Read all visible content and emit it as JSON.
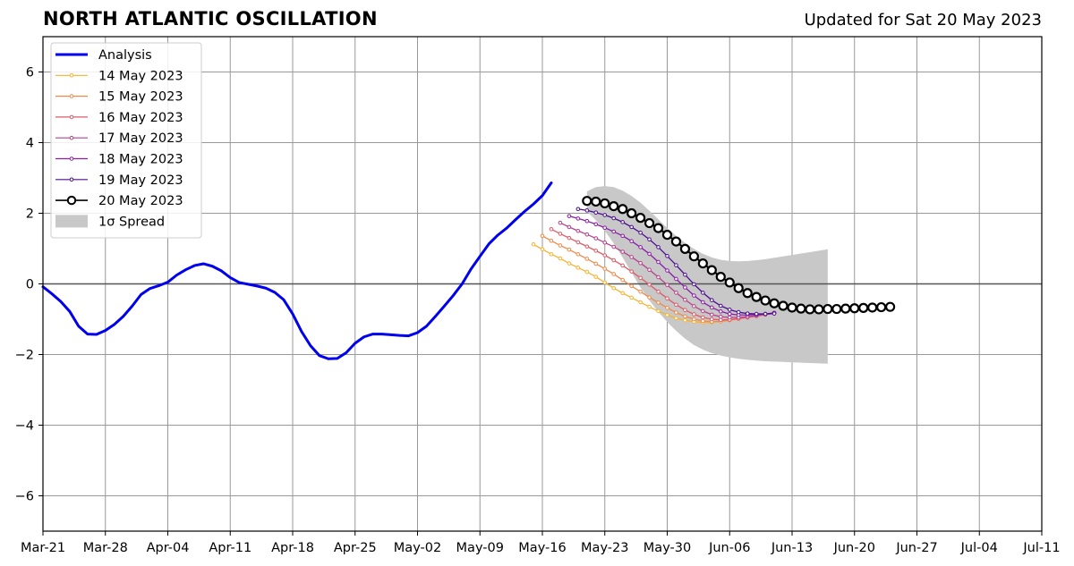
{
  "header": {
    "title": "NORTH ATLANTIC OSCILLATION",
    "updated": "Updated for Sat 20 May 2023"
  },
  "colors": {
    "analysis": "#0000ee",
    "spread": "#c8c8c8",
    "grid": "#999999",
    "zero_line": "#555555",
    "forecasts": [
      "#f5b331",
      "#ee8a4a",
      "#dc5c6a",
      "#b5418a",
      "#8a1ea6",
      "#4b0e90",
      "#000000"
    ]
  },
  "chart_data": {
    "type": "line",
    "title": "NORTH ATLANTIC OSCILLATION",
    "xlabel": "",
    "ylabel": "",
    "xlim": [
      "2023-03-21",
      "2023-07-11"
    ],
    "ylim": [
      -7,
      7
    ],
    "grid": true,
    "legend_position": "top-left",
    "x_ticks": [
      "Mar-21",
      "Mar-28",
      "Apr-04",
      "Apr-11",
      "Apr-18",
      "Apr-25",
      "May-02",
      "May-09",
      "May-16",
      "May-23",
      "May-30",
      "Jun-06",
      "Jun-13",
      "Jun-20",
      "Jun-27",
      "Jul-04",
      "Jul-11"
    ],
    "y_ticks": [
      "−6",
      "−4",
      "−2",
      "0",
      "2",
      "4",
      "6"
    ],
    "y_tick_values": [
      -6,
      -4,
      -2,
      0,
      2,
      4,
      6
    ],
    "legend": [
      "Analysis",
      "14 May 2023",
      "15 May 2023",
      "16 May 2023",
      "17 May 2023",
      "18 May 2023",
      "19 May 2023",
      "20 May 2023",
      "1σ Spread"
    ],
    "analysis": {
      "name": "Analysis",
      "x_start": "2023-03-21",
      "values": [
        -0.08,
        -0.28,
        -0.5,
        -0.78,
        -1.2,
        -1.42,
        -1.43,
        -1.32,
        -1.15,
        -0.92,
        -0.63,
        -0.3,
        -0.13,
        -0.05,
        0.05,
        0.25,
        0.4,
        0.52,
        0.57,
        0.5,
        0.37,
        0.18,
        0.04,
        -0.01,
        -0.06,
        -0.12,
        -0.24,
        -0.45,
        -0.85,
        -1.35,
        -1.75,
        -2.03,
        -2.12,
        -2.11,
        -1.95,
        -1.68,
        -1.5,
        -1.42,
        -1.42,
        -1.44,
        -1.46,
        -1.47,
        -1.38,
        -1.2,
        -0.92,
        -0.63,
        -0.33,
        0.0,
        0.42,
        0.78,
        1.13,
        1.38,
        1.58,
        1.82,
        2.05,
        2.26,
        2.5,
        2.86
      ]
    },
    "forecasts": [
      {
        "name": "14 May 2023",
        "x_start": "2023-05-15",
        "values": [
          1.12,
          0.98,
          0.84,
          0.72,
          0.58,
          0.46,
          0.34,
          0.2,
          0.04,
          -0.12,
          -0.26,
          -0.39,
          -0.52,
          -0.65,
          -0.77,
          -0.88,
          -0.97,
          -1.03,
          -1.07,
          -1.09,
          -1.09,
          -1.06,
          -1.02,
          -0.97,
          -0.93,
          -0.9,
          -0.86,
          -0.82
        ]
      },
      {
        "name": "15 May 2023",
        "x_start": "2023-05-16",
        "values": [
          1.36,
          1.22,
          1.09,
          0.97,
          0.84,
          0.71,
          0.57,
          0.43,
          0.28,
          0.11,
          -0.06,
          -0.22,
          -0.38,
          -0.53,
          -0.68,
          -0.81,
          -0.92,
          -1.0,
          -1.05,
          -1.07,
          -1.06,
          -1.03,
          -0.99,
          -0.95,
          -0.91,
          -0.87,
          -0.83
        ]
      },
      {
        "name": "16 May 2023",
        "x_start": "2023-05-17",
        "values": [
          1.55,
          1.42,
          1.3,
          1.18,
          1.06,
          0.94,
          0.81,
          0.67,
          0.52,
          0.35,
          0.17,
          -0.02,
          -0.22,
          -0.41,
          -0.59,
          -0.74,
          -0.86,
          -0.95,
          -1.0,
          -1.02,
          -1.01,
          -0.98,
          -0.95,
          -0.91,
          -0.87,
          -0.83
        ]
      },
      {
        "name": "17 May 2023",
        "x_start": "2023-05-18",
        "values": [
          1.73,
          1.61,
          1.5,
          1.4,
          1.29,
          1.17,
          1.05,
          0.91,
          0.76,
          0.59,
          0.4,
          0.19,
          -0.03,
          -0.25,
          -0.45,
          -0.63,
          -0.77,
          -0.87,
          -0.93,
          -0.95,
          -0.95,
          -0.93,
          -0.9,
          -0.86,
          -0.82
        ]
      },
      {
        "name": "18 May 2023",
        "x_start": "2023-05-19",
        "values": [
          1.92,
          1.85,
          1.78,
          1.69,
          1.59,
          1.48,
          1.36,
          1.21,
          1.04,
          0.85,
          0.62,
          0.38,
          0.14,
          -0.1,
          -0.33,
          -0.52,
          -0.67,
          -0.78,
          -0.85,
          -0.88,
          -0.88,
          -0.87,
          -0.85,
          -0.82
        ]
      },
      {
        "name": "19 May 2023",
        "x_start": "2023-05-20",
        "values": [
          2.12,
          2.08,
          2.02,
          1.95,
          1.86,
          1.75,
          1.61,
          1.45,
          1.26,
          1.04,
          0.79,
          0.53,
          0.26,
          -0.01,
          -0.25,
          -0.46,
          -0.62,
          -0.73,
          -0.8,
          -0.84,
          -0.85,
          -0.85,
          -0.84
        ]
      },
      {
        "name": "20 May 2023",
        "x_start": "2023-05-21",
        "values": [
          2.35,
          2.33,
          2.28,
          2.2,
          2.12,
          2.0,
          1.87,
          1.72,
          1.58,
          1.39,
          1.2,
          0.99,
          0.78,
          0.58,
          0.39,
          0.2,
          0.04,
          -0.12,
          -0.26,
          -0.37,
          -0.47,
          -0.55,
          -0.62,
          -0.67,
          -0.7,
          -0.72,
          -0.72,
          -0.71,
          -0.71,
          -0.7,
          -0.69,
          -0.68,
          -0.67,
          -0.66,
          -0.65
        ]
      }
    ],
    "spread": {
      "name": "1σ Spread",
      "x_start": "2023-05-21",
      "upper": [
        2.62,
        2.74,
        2.77,
        2.74,
        2.64,
        2.49,
        2.3,
        2.07,
        1.83,
        1.58,
        1.36,
        1.16,
        0.99,
        0.85,
        0.75,
        0.68,
        0.65,
        0.64,
        0.65,
        0.67,
        0.7,
        0.74,
        0.78,
        0.82,
        0.86,
        0.9,
        0.94,
        0.98
      ],
      "lower": [
        2.05,
        1.8,
        1.5,
        1.15,
        0.75,
        0.32,
        -0.1,
        -0.47,
        -0.79,
        -1.08,
        -1.33,
        -1.55,
        -1.73,
        -1.86,
        -1.96,
        -2.03,
        -2.08,
        -2.12,
        -2.15,
        -2.17,
        -2.19,
        -2.2,
        -2.21,
        -2.22,
        -2.23,
        -2.24,
        -2.25,
        -2.26
      ]
    }
  }
}
